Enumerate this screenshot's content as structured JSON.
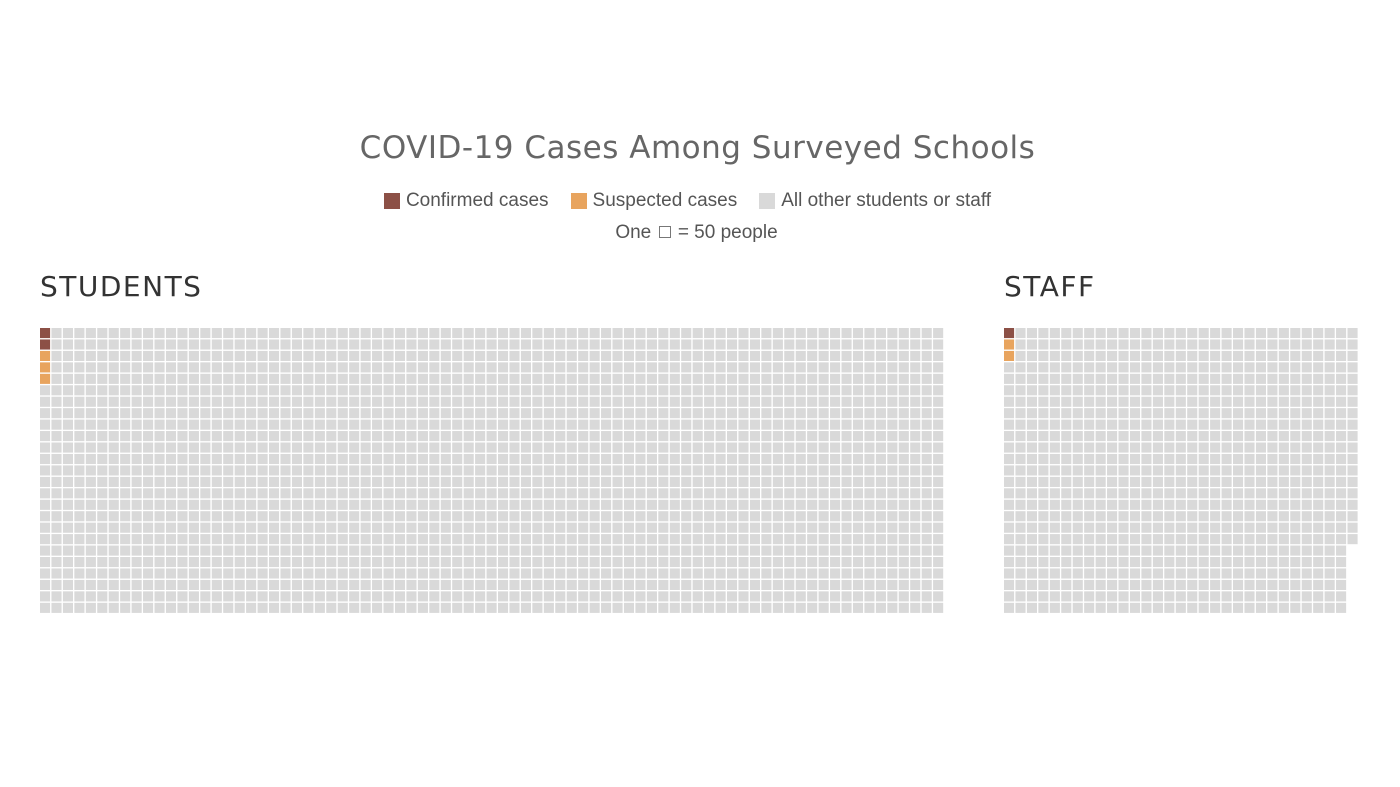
{
  "chart_data": {
    "type": "waffle",
    "title": "COVID-19 Cases Among Surveyed Schools",
    "unit_note": {
      "prefix": "One",
      "suffix": "= 50 people"
    },
    "legend": [
      {
        "label": "Confirmed cases",
        "color": "#8c5046"
      },
      {
        "label": "Suspected cases",
        "color": "#e8a45e"
      },
      {
        "label": "All other students or staff",
        "color": "#d9d9d9"
      }
    ],
    "people_per_square": 50,
    "groups": [
      {
        "name": "STUDENTS",
        "rows": 25,
        "columns": 79,
        "confirmed_squares": 2,
        "suspected_squares": 3,
        "total_squares": 1975
      },
      {
        "name": "STAFF",
        "rows": 25,
        "columns": 32,
        "confirmed_squares": 1,
        "suspected_squares": 2,
        "total_squares": 769
      }
    ]
  }
}
